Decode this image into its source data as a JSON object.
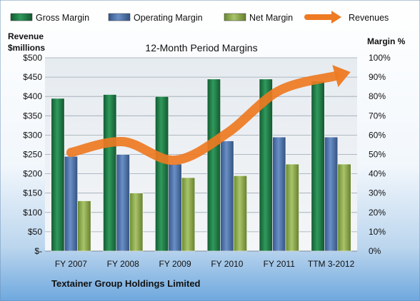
{
  "chart_data": {
    "type": "bar",
    "title": "12-Month Period Margins",
    "footer": "Textainer Group Holdings Limited",
    "categories": [
      "FY 2007",
      "FY 2008",
      "FY 2009",
      "FY 2010",
      "FY 2011",
      "TTM 3-2012"
    ],
    "ylabel_left": [
      "Revenue",
      "$millions"
    ],
    "ylabel_right": "Margin %",
    "ylim_left": [
      0,
      500
    ],
    "ylim_right": [
      0,
      100
    ],
    "yticks_left": [
      "$-",
      "$50",
      "$100",
      "$150",
      "$200",
      "$250",
      "$300",
      "$350",
      "$400",
      "$450",
      "$500"
    ],
    "yticks_right": [
      "0%",
      "10%",
      "20%",
      "30%",
      "40%",
      "50%",
      "60%",
      "70%",
      "80%",
      "90%",
      "100%"
    ],
    "grid": true,
    "legend_position": "top",
    "series": [
      {
        "name": "Gross Margin",
        "axis": "right",
        "kind": "bar",
        "color": "#1f7a45",
        "values": [
          79,
          81,
          80,
          89,
          89,
          88
        ]
      },
      {
        "name": "Operating Margin",
        "axis": "right",
        "kind": "bar",
        "color": "#4a6fa8",
        "values": [
          49,
          50,
          45,
          57,
          59,
          59
        ]
      },
      {
        "name": "Net Margin",
        "axis": "right",
        "kind": "bar",
        "color": "#8aa84a",
        "values": [
          26,
          30,
          38,
          39,
          45,
          45
        ]
      },
      {
        "name": "Revenues",
        "axis": "left",
        "kind": "line",
        "color": "#ee7a22",
        "values": [
          255,
          283,
          235,
          305,
          415,
          450
        ]
      }
    ]
  }
}
